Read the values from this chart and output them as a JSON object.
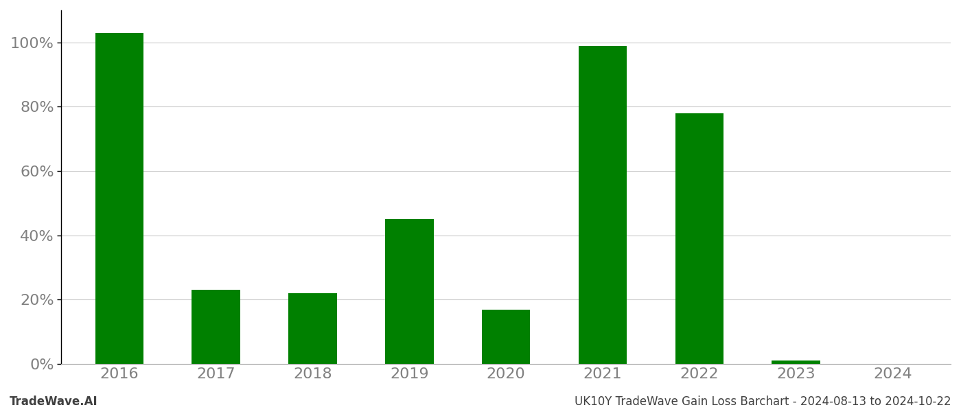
{
  "categories": [
    "2016",
    "2017",
    "2018",
    "2019",
    "2020",
    "2021",
    "2022",
    "2023",
    "2024"
  ],
  "values": [
    1.03,
    0.23,
    0.22,
    0.45,
    0.17,
    0.99,
    0.78,
    0.01,
    0.0
  ],
  "bar_color": "#008000",
  "background_color": "#ffffff",
  "ylim": [
    0,
    1.1
  ],
  "yticks": [
    0.0,
    0.2,
    0.4,
    0.6,
    0.8,
    1.0
  ],
  "ylabel": "",
  "xlabel": "",
  "footer_left": "TradeWave.AI",
  "footer_right": "UK10Y TradeWave Gain Loss Barchart - 2024-08-13 to 2024-10-22",
  "grid_color": "#cccccc",
  "tick_label_color": "#808080",
  "footer_color": "#404040",
  "bar_width": 0.5,
  "footer_fontsize": 12,
  "tick_fontsize": 16
}
